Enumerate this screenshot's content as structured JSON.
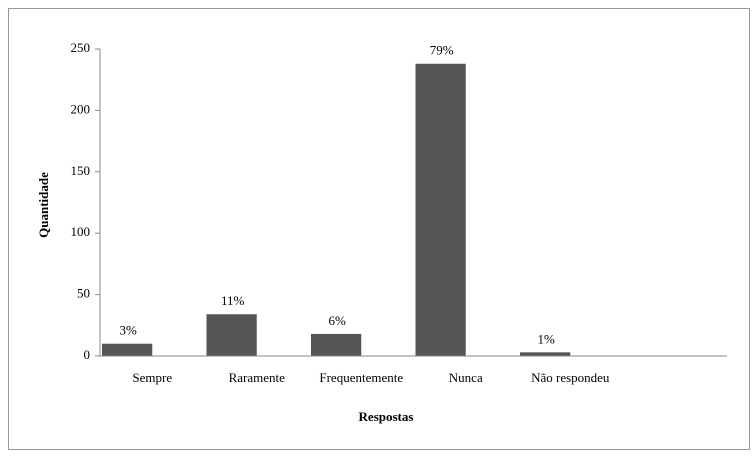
{
  "chart_data": {
    "type": "bar",
    "x_label": "Respostas",
    "y_label": "Quantidade",
    "categories": [
      "Sempre",
      "Raramente",
      "Frequentemente",
      "Nunca",
      "Não respondeu",
      null
    ],
    "values": [
      10,
      34,
      18,
      238,
      3,
      null
    ],
    "annotations": [
      "3%",
      "11%",
      "6%",
      "79%",
      "1%",
      null
    ],
    "color": "#555555",
    "ylim": [
      0,
      250
    ],
    "yticks": [
      0,
      50,
      100,
      150,
      200,
      250
    ],
    "grid": false
  }
}
